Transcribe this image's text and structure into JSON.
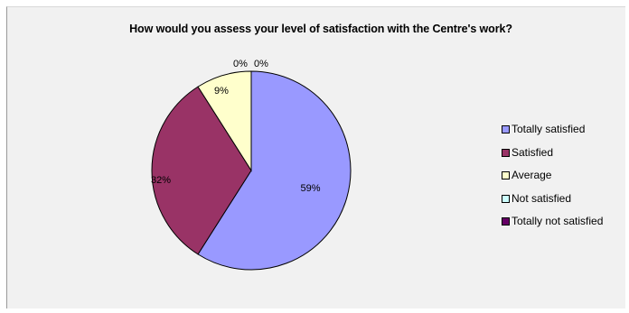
{
  "chart_data": {
    "type": "pie",
    "title": "How would you assess your level of satisfaction with the Centre's work?",
    "categories": [
      "Totally satisfied",
      "Satisfied",
      "Average",
      "Not satisfied",
      "Totally not satisfied"
    ],
    "values": [
      59,
      32,
      9,
      0,
      0
    ],
    "labels": [
      "59%",
      "32%",
      "9%",
      "0%",
      "0%"
    ],
    "colors": [
      "#9999ff",
      "#993366",
      "#ffffcc",
      "#ccffff",
      "#660066"
    ],
    "legend_position": "right"
  }
}
